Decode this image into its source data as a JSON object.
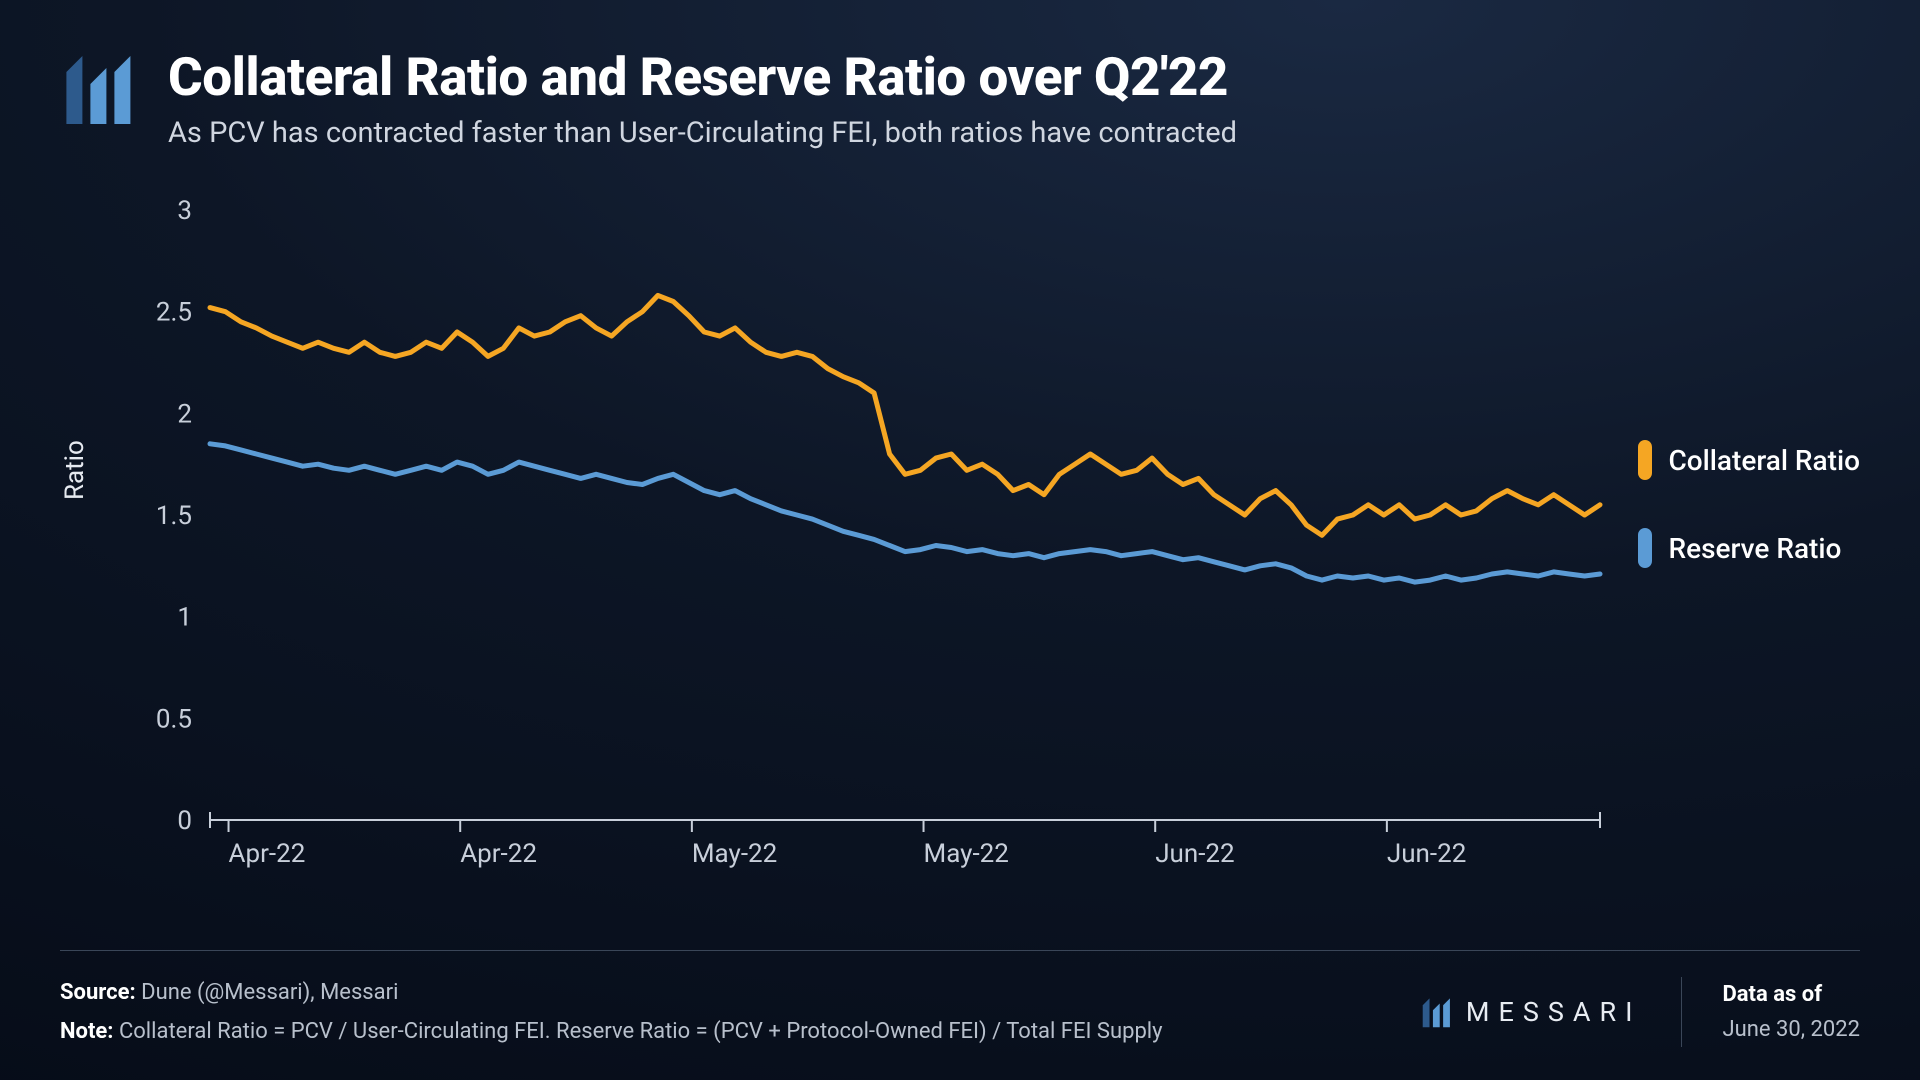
{
  "header": {
    "title": "Collateral Ratio and Reserve Ratio over Q2'22",
    "subtitle": "As PCV has contracted faster than User-Circulating FEI, both ratios have contracted"
  },
  "chart": {
    "type": "line",
    "y_label": "Ratio",
    "background": "transparent",
    "axis_color": "#c8cfda",
    "tick_fontsize": 26,
    "line_width": 5,
    "ylim": [
      0,
      3
    ],
    "yticks": [
      0,
      0.5,
      1,
      1.5,
      2,
      2.5,
      3
    ],
    "ytick_labels": [
      "0",
      "0.5",
      "1",
      "1.5",
      "2",
      "2.5",
      "3"
    ],
    "xtick_labels": [
      "Apr-22",
      "Apr-22",
      "May-22",
      "May-22",
      "Jun-22",
      "Jun-22"
    ],
    "series": [
      {
        "name": "Collateral Ratio",
        "color": "#f5a623",
        "values": [
          2.52,
          2.5,
          2.45,
          2.42,
          2.38,
          2.35,
          2.32,
          2.35,
          2.32,
          2.3,
          2.35,
          2.3,
          2.28,
          2.3,
          2.35,
          2.32,
          2.4,
          2.35,
          2.28,
          2.32,
          2.42,
          2.38,
          2.4,
          2.45,
          2.48,
          2.42,
          2.38,
          2.45,
          2.5,
          2.58,
          2.55,
          2.48,
          2.4,
          2.38,
          2.42,
          2.35,
          2.3,
          2.28,
          2.3,
          2.28,
          2.22,
          2.18,
          2.15,
          2.1,
          1.8,
          1.7,
          1.72,
          1.78,
          1.8,
          1.72,
          1.75,
          1.7,
          1.62,
          1.65,
          1.6,
          1.7,
          1.75,
          1.8,
          1.75,
          1.7,
          1.72,
          1.78,
          1.7,
          1.65,
          1.68,
          1.6,
          1.55,
          1.5,
          1.58,
          1.62,
          1.55,
          1.45,
          1.4,
          1.48,
          1.5,
          1.55,
          1.5,
          1.55,
          1.48,
          1.5,
          1.55,
          1.5,
          1.52,
          1.58,
          1.62,
          1.58,
          1.55,
          1.6,
          1.55,
          1.5,
          1.55
        ]
      },
      {
        "name": "Reserve Ratio",
        "color": "#5b9bd5",
        "values": [
          1.85,
          1.84,
          1.82,
          1.8,
          1.78,
          1.76,
          1.74,
          1.75,
          1.73,
          1.72,
          1.74,
          1.72,
          1.7,
          1.72,
          1.74,
          1.72,
          1.76,
          1.74,
          1.7,
          1.72,
          1.76,
          1.74,
          1.72,
          1.7,
          1.68,
          1.7,
          1.68,
          1.66,
          1.65,
          1.68,
          1.7,
          1.66,
          1.62,
          1.6,
          1.62,
          1.58,
          1.55,
          1.52,
          1.5,
          1.48,
          1.45,
          1.42,
          1.4,
          1.38,
          1.35,
          1.32,
          1.33,
          1.35,
          1.34,
          1.32,
          1.33,
          1.31,
          1.3,
          1.31,
          1.29,
          1.31,
          1.32,
          1.33,
          1.32,
          1.3,
          1.31,
          1.32,
          1.3,
          1.28,
          1.29,
          1.27,
          1.25,
          1.23,
          1.25,
          1.26,
          1.24,
          1.2,
          1.18,
          1.2,
          1.19,
          1.2,
          1.18,
          1.19,
          1.17,
          1.18,
          1.2,
          1.18,
          1.19,
          1.21,
          1.22,
          1.21,
          1.2,
          1.22,
          1.21,
          1.2,
          1.21
        ]
      }
    ]
  },
  "legend": {
    "items": [
      {
        "label": "Collateral Ratio",
        "color": "#f5a623"
      },
      {
        "label": "Reserve Ratio",
        "color": "#5b9bd5"
      }
    ]
  },
  "footer": {
    "source_label": "Source:",
    "source_text": "Dune (@Messari), Messari",
    "note_label": "Note:",
    "note_text": "Collateral Ratio = PCV / User-Circulating FEI. Reserve Ratio = (PCV + Protocol-Owned FEI) / Total FEI Supply",
    "brand": "MESSARI",
    "date_label": "Data as of",
    "date_value": "June 30, 2022"
  },
  "colors": {
    "logo_light": "#5b9bd5",
    "logo_dark": "#2d5a8c"
  }
}
